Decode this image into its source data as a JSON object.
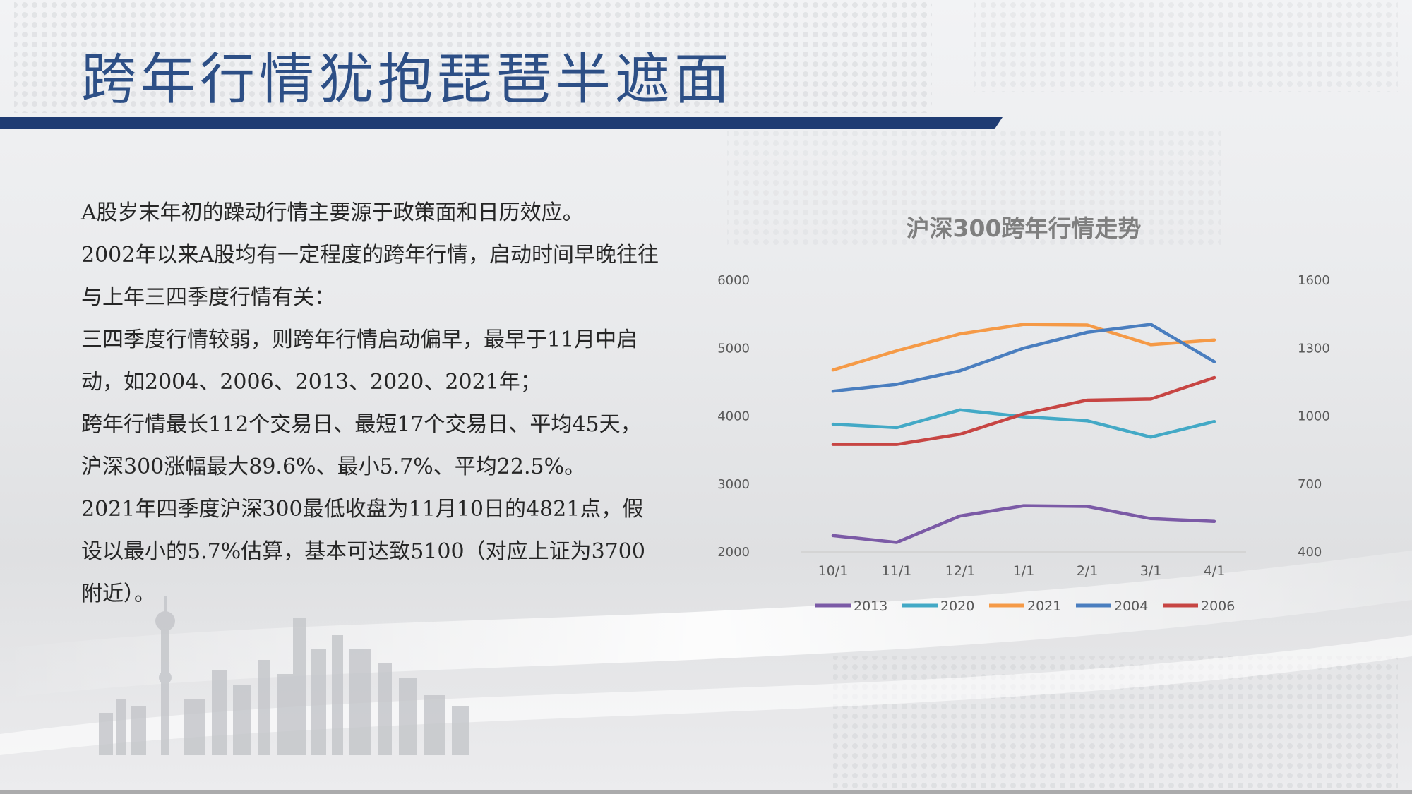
{
  "slide": {
    "title": "跨年行情犹抱琵琶半遮面",
    "paragraphs": [
      "A股岁末年初的躁动行情主要源于政策面和日历效应。",
      "2002年以来A股均有一定程度的跨年行情，启动时间早晚往往与上年三四季度行情有关：",
      "三四季度行情较弱，则跨年行情启动偏早，最早于11月中启动，如2004、2006、2013、2020、2021年；",
      "跨年行情最长112个交易日、最短17个交易日、平均45天，沪深300涨幅最大89.6%、最小5.7%、平均22.5%。",
      "2021年四季度沪深300最低收盘为11月10日的4821点，假设以最小的5.7%估算，基本可达致5100（对应上证为3700附近）。"
    ]
  },
  "chart_data": {
    "type": "line",
    "title": "沪深300跨年行情走势",
    "categories": [
      "10/1",
      "11/1",
      "12/1",
      "1/1",
      "2/1",
      "3/1",
      "4/1"
    ],
    "ylim": [
      2000,
      6000
    ],
    "yticks": [
      2000,
      3000,
      4000,
      5000,
      6000
    ],
    "y2lim": [
      400,
      1600
    ],
    "y2ticks": [
      400,
      700,
      1000,
      1300,
      1600
    ],
    "grid": false,
    "legend": "bottom",
    "series": [
      {
        "name": "2013",
        "color": "#7b5aa6",
        "axis": "left",
        "values": [
          2240,
          2140,
          2530,
          2680,
          2670,
          2490,
          2450
        ]
      },
      {
        "name": "2020",
        "color": "#43a9c6",
        "axis": "left",
        "values": [
          3880,
          3830,
          4090,
          3990,
          3930,
          3690,
          3920
        ]
      },
      {
        "name": "2021",
        "color": "#f59a47",
        "axis": "left",
        "values": [
          4680,
          4960,
          5210,
          5350,
          5340,
          5050,
          5120
        ]
      },
      {
        "name": "2004",
        "color": "#4a7ebf",
        "axis": "right",
        "values": [
          1110,
          1140,
          1200,
          1300,
          1370,
          1405,
          1240
        ]
      },
      {
        "name": "2006",
        "color": "#c74543",
        "axis": "right",
        "values": [
          875,
          875,
          920,
          1010,
          1070,
          1075,
          1170
        ]
      }
    ]
  }
}
